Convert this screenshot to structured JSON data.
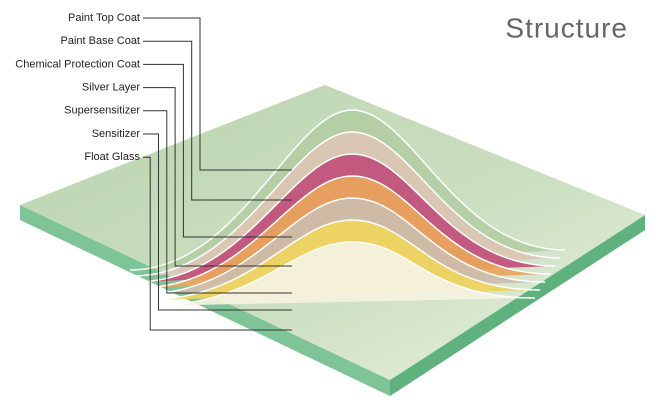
{
  "title": "Structure",
  "layers": [
    "Paint Top Coat",
    "Paint Base Coat",
    "Chemical Protection Coat",
    "Silver Layer",
    "Supersensitizer",
    "Sensitizer",
    "Float Glass"
  ]
}
